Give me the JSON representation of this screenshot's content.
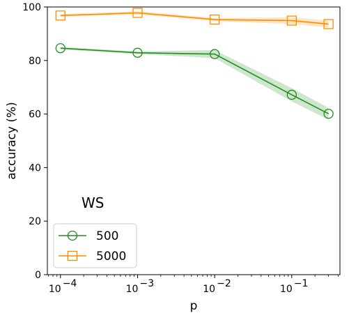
{
  "chart_data": {
    "type": "line",
    "xlabel": "p",
    "ylabel": "accuracy (%)",
    "xscale": "log",
    "x": [
      0.0001,
      0.001,
      0.01,
      0.1,
      0.3
    ],
    "xticks": [
      {
        "value": 0.0001,
        "base": "10",
        "exp": "−4"
      },
      {
        "value": 0.001,
        "base": "10",
        "exp": "−3"
      },
      {
        "value": 0.01,
        "base": "10",
        "exp": "−2"
      },
      {
        "value": 0.1,
        "base": "10",
        "exp": "−1"
      }
    ],
    "ylim": [
      0,
      100
    ],
    "yticks": [
      0,
      20,
      40,
      60,
      80,
      100
    ],
    "annotation": "WS",
    "legend_position": "lower-left",
    "grid": false,
    "series": [
      {
        "name": "500",
        "color": "#228b22",
        "marker": "circle",
        "values": [
          84.6,
          82.9,
          82.4,
          67.2,
          60.1
        ],
        "lower": [
          84.1,
          82.4,
          80.9,
          64.7,
          57.9
        ],
        "upper": [
          85.1,
          83.4,
          83.9,
          69.7,
          62.3
        ]
      },
      {
        "name": "5000",
        "color": "#ff8c00",
        "marker": "square",
        "values": [
          96.8,
          97.8,
          95.3,
          94.9,
          93.6
        ],
        "lower": [
          96.3,
          97.2,
          94.7,
          93.6,
          92.3
        ],
        "upper": [
          97.3,
          98.4,
          95.9,
          96.2,
          94.9
        ]
      }
    ]
  }
}
